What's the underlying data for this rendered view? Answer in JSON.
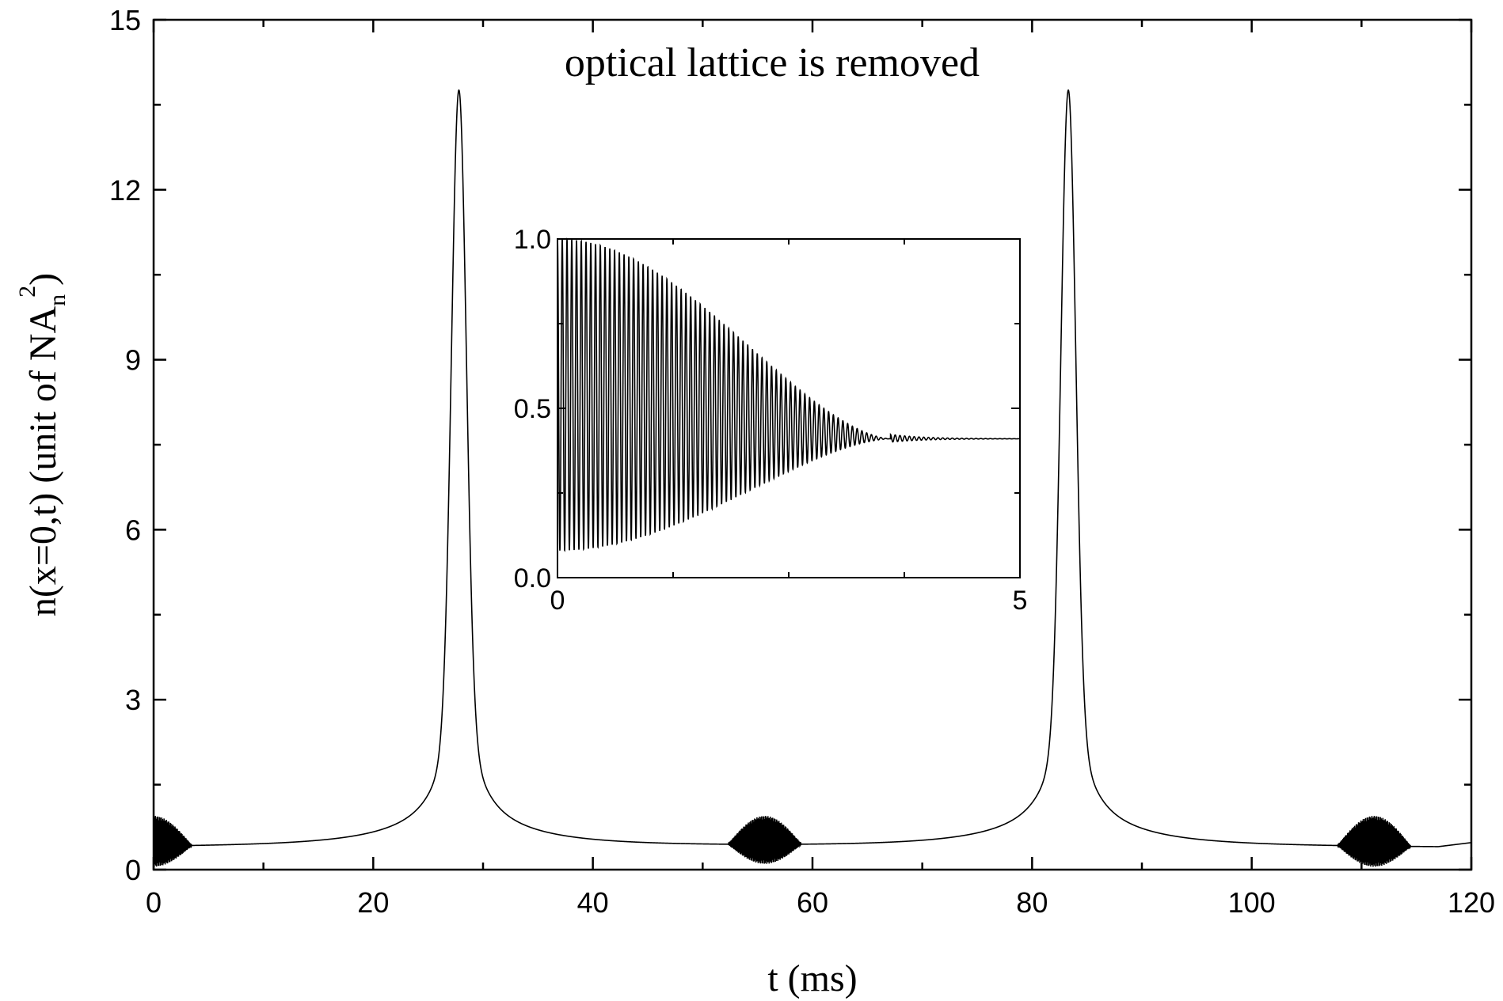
{
  "chart_data": [
    {
      "type": "line",
      "title": "",
      "annotation": "optical lattice is removed",
      "xlabel": "t (ms)",
      "ylabel": {
        "main": "n(x=0,t) (unit of NA",
        "sub": "n",
        "sup": "2",
        "close": ")"
      },
      "xlim": [
        0,
        120
      ],
      "ylim": [
        0,
        15
      ],
      "xticks": [
        0,
        20,
        40,
        60,
        80,
        100,
        120
      ],
      "xtick_labels": [
        "0",
        "20",
        "40",
        "60",
        "80",
        "100",
        "120"
      ],
      "yticks": [
        0,
        3,
        6,
        9,
        12,
        15
      ],
      "ytick_labels": [
        "0",
        "3",
        "6",
        "9",
        "12",
        "15"
      ],
      "grid": false,
      "series": [
        {
          "color": "#000000",
          "baseline": 0.38,
          "peaks": [
            {
              "t": 27.8,
              "height": 13.75
            },
            {
              "t": 83.3,
              "height": 13.75
            }
          ],
          "oscillation_bursts": [
            {
              "t_start": 0,
              "t_end": 3.5,
              "min": 0.05,
              "max": 0.95
            },
            {
              "t_start": 52.3,
              "t_end": 59.0,
              "min": 0.1,
              "max": 0.95
            },
            {
              "t_start": 107.8,
              "t_end": 114.5,
              "min": 0.05,
              "max": 0.95
            }
          ],
          "end_value": 0.45
        }
      ]
    },
    {
      "type": "line",
      "title": "",
      "xlabel": "",
      "ylabel": "",
      "xlim": [
        0,
        5
      ],
      "ylim": [
        0,
        1
      ],
      "xticks": [
        0,
        5
      ],
      "xtick_labels": [
        "0",
        "5"
      ],
      "yticks": [
        0.0,
        0.5,
        1.0
      ],
      "ytick_labels": [
        "0.0",
        "0.5",
        "1.0"
      ],
      "grid": false,
      "series": [
        {
          "color": "#000000",
          "oscillation": {
            "max_start": 1.0,
            "min_start": 0.08,
            "settle_value": 0.41,
            "decay_end": 3.6,
            "cycles": 70
          }
        }
      ]
    }
  ]
}
